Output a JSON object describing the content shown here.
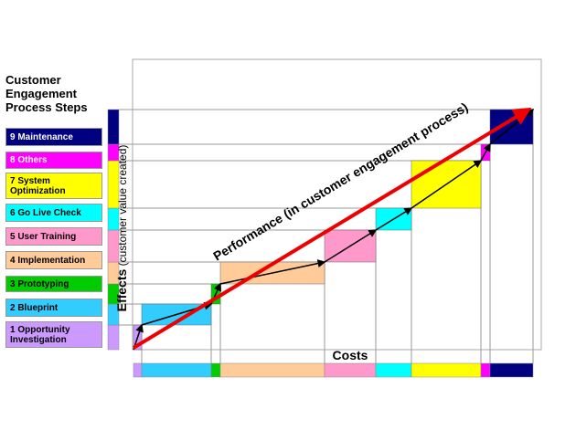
{
  "legend": {
    "title": "Customer Engagement Process Steps",
    "steps": [
      "1 Opportunity Investigation",
      "2 Blueprint",
      "3 Prototyping",
      "4 Implementation",
      "5 User Training",
      "6 Go Live Check",
      "7 System Optimization",
      "8 Others",
      "9 Maintenance"
    ]
  },
  "axes": {
    "y_label": "Effects",
    "y_sublabel": "(customer value created)",
    "x_label": "Costs"
  },
  "annotation": "Performance (in customer engagement process)"
}
